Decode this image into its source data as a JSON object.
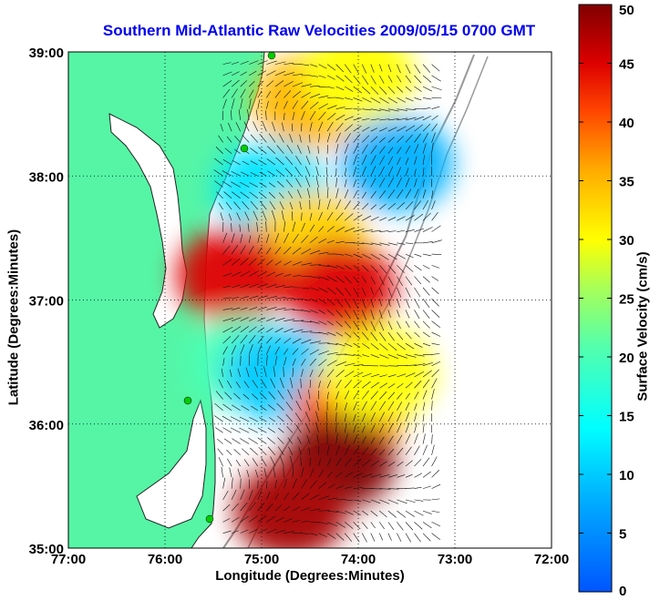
{
  "chart_data": {
    "type": "heatmap",
    "title": "Southern Mid-Atlantic Raw Velocities 2009/05/15 0700 GMT",
    "xlabel": "Longitude (Degrees:Minutes)",
    "ylabel": "Latitude (Degrees:Minutes)",
    "x_ticks": [
      "77:00",
      "76:00",
      "75:00",
      "74:00",
      "73:00",
      "72:00"
    ],
    "x_values": [
      -77,
      -76,
      -75,
      -74,
      -73,
      -72
    ],
    "y_ticks": [
      "39:00",
      "38:00",
      "37:00",
      "36:00",
      "35:00"
    ],
    "y_values": [
      39,
      38,
      37,
      36,
      35
    ],
    "xlim": [
      -77,
      -72
    ],
    "ylim": [
      35,
      39
    ],
    "grid": true,
    "colorbar": {
      "label": "Surface Velocity (cm/s)",
      "range": [
        0,
        50
      ],
      "ticks": [
        "50",
        "45",
        "40",
        "35",
        "30",
        "25",
        "20",
        "15",
        "10",
        "5",
        "0"
      ],
      "tick_values": [
        50,
        45,
        40,
        35,
        30,
        25,
        20,
        15,
        10,
        5,
        0
      ]
    },
    "colors": {
      "land": "#55f5a5",
      "title": "#0000ee"
    },
    "regions": [
      {
        "lon": -74.5,
        "lat": 38.6,
        "speed": 35
      },
      {
        "lon": -74.0,
        "lat": 38.8,
        "speed": 30
      },
      {
        "lon": -73.6,
        "lat": 38.1,
        "speed": 8
      },
      {
        "lon": -74.9,
        "lat": 37.9,
        "speed": 12
      },
      {
        "lon": -74.5,
        "lat": 37.5,
        "speed": 33
      },
      {
        "lon": -75.3,
        "lat": 37.2,
        "speed": 45
      },
      {
        "lon": -74.2,
        "lat": 37.1,
        "speed": 45
      },
      {
        "lon": -75.2,
        "lat": 36.5,
        "speed": 20
      },
      {
        "lon": -74.8,
        "lat": 36.4,
        "speed": 10
      },
      {
        "lon": -74.1,
        "lat": 36.1,
        "speed": 40
      },
      {
        "lon": -74.2,
        "lat": 35.7,
        "speed": 50
      },
      {
        "lon": -74.7,
        "lat": 35.3,
        "speed": 48
      },
      {
        "lon": -73.8,
        "lat": 36.4,
        "speed": 30
      }
    ]
  }
}
